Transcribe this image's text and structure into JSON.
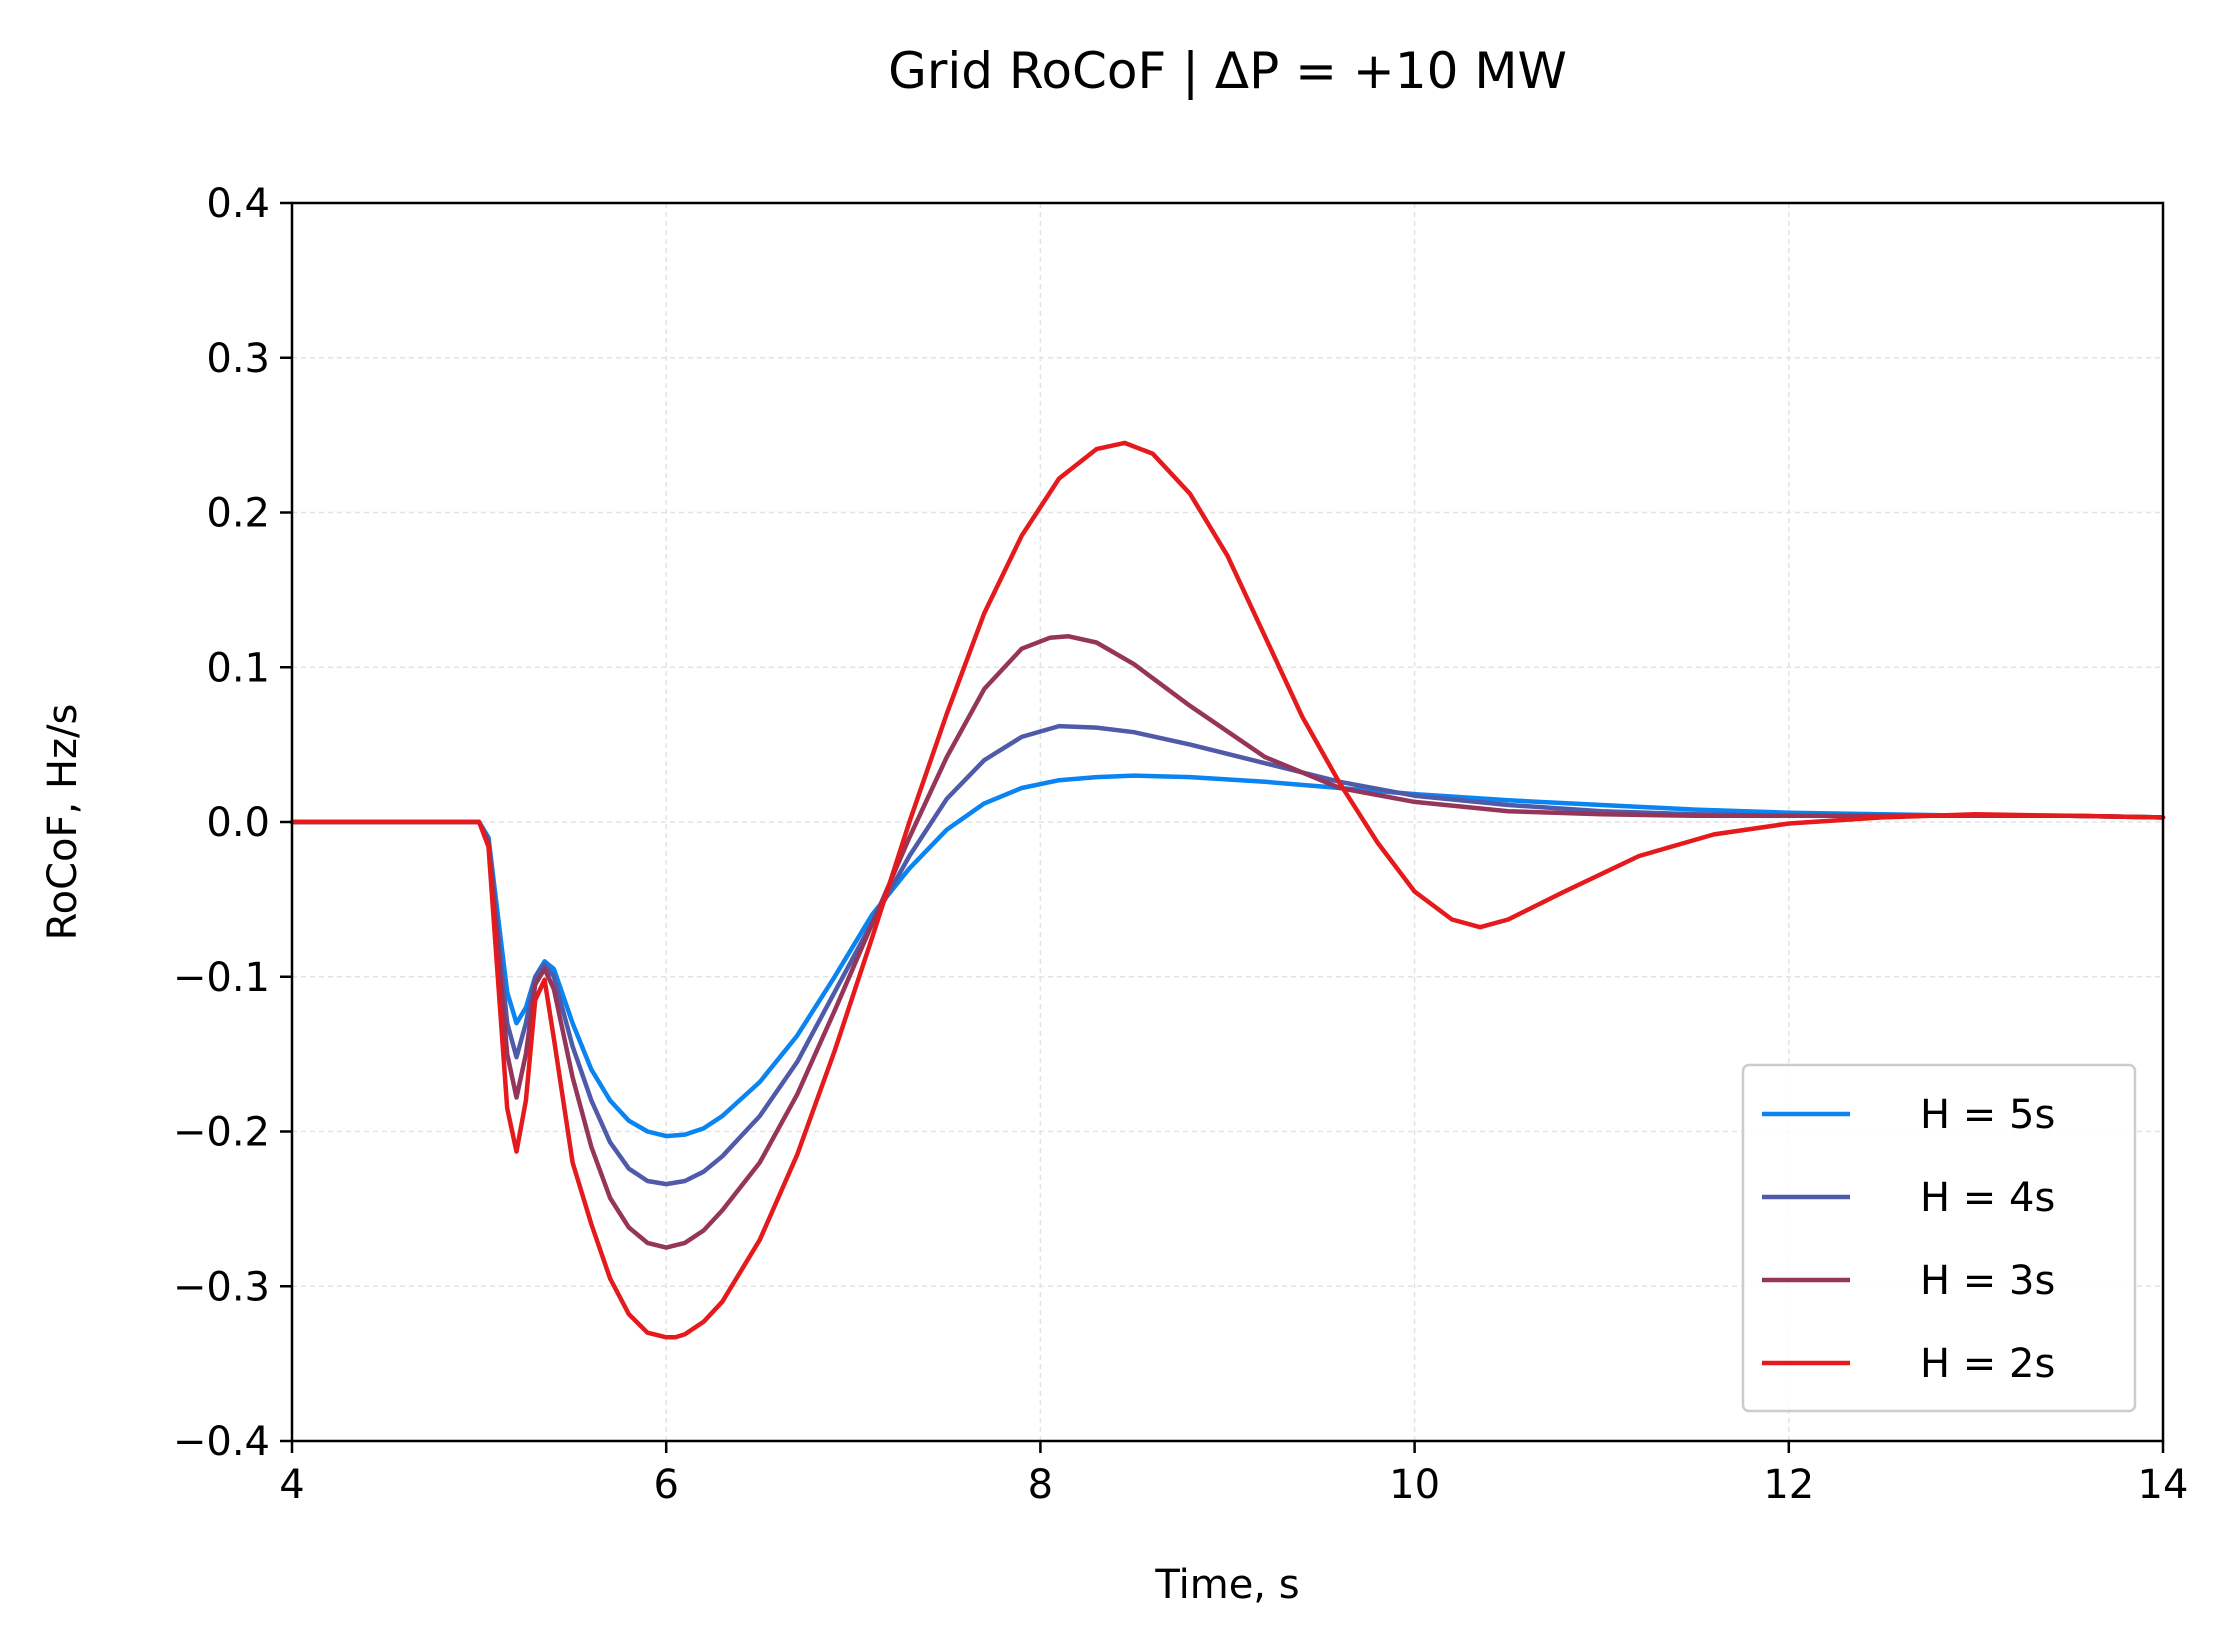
{
  "chart_data": {
    "type": "line",
    "title": "Grid RoCoF  |  ΔP = +10 MW",
    "xlabel": "Time, s",
    "ylabel": "RoCoF, Hz/s",
    "xlim": [
      4,
      14
    ],
    "ylim": [
      -0.4,
      0.4
    ],
    "xticks": [
      4,
      6,
      8,
      10,
      12,
      14
    ],
    "xtick_labels": [
      "4",
      "6",
      "8",
      "10",
      "12",
      "14"
    ],
    "yticks": [
      -0.4,
      -0.3,
      -0.2,
      -0.1,
      0.0,
      0.1,
      0.2,
      0.3,
      0.4
    ],
    "ytick_labels": [
      "−0.4",
      "−0.3",
      "−0.2",
      "−0.1",
      "0.0",
      "0.1",
      "0.2",
      "0.3",
      "0.4"
    ],
    "grid": true,
    "legend_position": "lower-right",
    "series": [
      {
        "name": "H = 5s",
        "color": "#0a84f0",
        "x": [
          4.0,
          4.5,
          5.0,
          5.05,
          5.1,
          5.15,
          5.2,
          5.25,
          5.3,
          5.35,
          5.4,
          5.5,
          5.6,
          5.7,
          5.8,
          5.9,
          6.0,
          6.1,
          6.2,
          6.3,
          6.5,
          6.7,
          6.9,
          7.1,
          7.3,
          7.5,
          7.7,
          7.9,
          8.1,
          8.3,
          8.5,
          8.8,
          9.2,
          9.6,
          10.0,
          10.5,
          11.0,
          11.5,
          12.0,
          12.5,
          13.0,
          13.5,
          14.0
        ],
        "y": [
          0.0,
          0.0,
          0.0,
          -0.01,
          -0.06,
          -0.11,
          -0.13,
          -0.12,
          -0.1,
          -0.09,
          -0.095,
          -0.13,
          -0.16,
          -0.18,
          -0.193,
          -0.2,
          -0.203,
          -0.202,
          -0.198,
          -0.19,
          -0.168,
          -0.138,
          -0.1,
          -0.06,
          -0.03,
          -0.005,
          0.012,
          0.022,
          0.027,
          0.029,
          0.03,
          0.029,
          0.026,
          0.022,
          0.018,
          0.014,
          0.011,
          0.008,
          0.006,
          0.005,
          0.004,
          0.004,
          0.003
        ]
      },
      {
        "name": "H = 4s",
        "color": "#4f5ba8",
        "x": [
          4.0,
          4.5,
          5.0,
          5.05,
          5.1,
          5.15,
          5.2,
          5.25,
          5.3,
          5.35,
          5.4,
          5.5,
          5.6,
          5.7,
          5.8,
          5.9,
          6.0,
          6.1,
          6.2,
          6.3,
          6.5,
          6.7,
          6.9,
          7.1,
          7.3,
          7.5,
          7.7,
          7.9,
          8.1,
          8.3,
          8.5,
          8.8,
          9.2,
          9.6,
          10.0,
          10.5,
          11.0,
          11.5,
          12.0,
          12.5,
          13.0,
          13.5,
          14.0
        ],
        "y": [
          0.0,
          0.0,
          0.0,
          -0.012,
          -0.07,
          -0.13,
          -0.152,
          -0.13,
          -0.1,
          -0.092,
          -0.1,
          -0.145,
          -0.18,
          -0.207,
          -0.224,
          -0.232,
          -0.234,
          -0.232,
          -0.226,
          -0.216,
          -0.19,
          -0.155,
          -0.11,
          -0.065,
          -0.022,
          0.015,
          0.04,
          0.055,
          0.062,
          0.061,
          0.058,
          0.05,
          0.038,
          0.026,
          0.017,
          0.011,
          0.007,
          0.005,
          0.004,
          0.004,
          0.004,
          0.004,
          0.003
        ]
      },
      {
        "name": "H = 3s",
        "color": "#96355a",
        "x": [
          4.0,
          4.5,
          5.0,
          5.05,
          5.1,
          5.15,
          5.2,
          5.25,
          5.3,
          5.35,
          5.4,
          5.5,
          5.6,
          5.7,
          5.8,
          5.9,
          6.0,
          6.1,
          6.2,
          6.3,
          6.5,
          6.7,
          6.9,
          7.1,
          7.3,
          7.5,
          7.7,
          7.9,
          8.05,
          8.15,
          8.3,
          8.5,
          8.8,
          9.2,
          9.6,
          10.0,
          10.5,
          11.0,
          11.5,
          12.0,
          12.5,
          13.0,
          13.5,
          14.0
        ],
        "y": [
          0.0,
          0.0,
          0.0,
          -0.014,
          -0.08,
          -0.15,
          -0.178,
          -0.15,
          -0.105,
          -0.095,
          -0.108,
          -0.165,
          -0.21,
          -0.243,
          -0.262,
          -0.272,
          -0.275,
          -0.272,
          -0.264,
          -0.251,
          -0.22,
          -0.176,
          -0.122,
          -0.066,
          -0.01,
          0.042,
          0.086,
          0.112,
          0.119,
          0.12,
          0.116,
          0.102,
          0.075,
          0.042,
          0.022,
          0.013,
          0.007,
          0.005,
          0.004,
          0.004,
          0.004,
          0.004,
          0.004,
          0.003
        ]
      },
      {
        "name": "H = 2s",
        "color": "#e41a1c",
        "x": [
          4.0,
          4.5,
          5.0,
          5.05,
          5.1,
          5.15,
          5.2,
          5.25,
          5.3,
          5.35,
          5.4,
          5.5,
          5.6,
          5.7,
          5.8,
          5.9,
          6.0,
          6.05,
          6.1,
          6.2,
          6.3,
          6.5,
          6.7,
          6.9,
          7.1,
          7.3,
          7.5,
          7.7,
          7.9,
          8.1,
          8.3,
          8.45,
          8.6,
          8.8,
          9.0,
          9.2,
          9.4,
          9.6,
          9.8,
          10.0,
          10.2,
          10.35,
          10.5,
          10.8,
          11.2,
          11.6,
          12.0,
          12.5,
          13.0,
          13.5,
          14.0
        ],
        "y": [
          0.0,
          0.0,
          0.0,
          -0.016,
          -0.1,
          -0.185,
          -0.213,
          -0.18,
          -0.115,
          -0.102,
          -0.14,
          -0.22,
          -0.26,
          -0.295,
          -0.318,
          -0.33,
          -0.333,
          -0.333,
          -0.331,
          -0.323,
          -0.31,
          -0.27,
          -0.215,
          -0.148,
          -0.075,
          0.0,
          0.07,
          0.135,
          0.185,
          0.222,
          0.241,
          0.245,
          0.238,
          0.212,
          0.172,
          0.12,
          0.068,
          0.025,
          -0.013,
          -0.045,
          -0.063,
          -0.068,
          -0.063,
          -0.045,
          -0.022,
          -0.008,
          -0.001,
          0.003,
          0.005,
          0.004,
          0.003
        ]
      }
    ]
  }
}
